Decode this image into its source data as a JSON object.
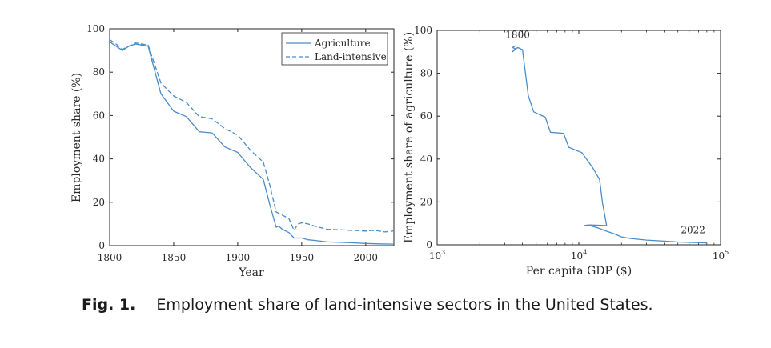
{
  "chart_data": [
    {
      "type": "line",
      "title": "",
      "xlabel": "Year",
      "ylabel": "Employment share (%)",
      "xlim": [
        1800,
        2022
      ],
      "ylim": [
        0,
        100
      ],
      "xticks": [
        1800,
        1850,
        1900,
        1950,
        2000
      ],
      "yticks": [
        0,
        20,
        40,
        60,
        80,
        100
      ],
      "grid": false,
      "legend_position": "top-right",
      "colors": {
        "line": "#4a8cc8",
        "axis": "#262626"
      },
      "series": [
        {
          "name": "Agriculture",
          "style": "solid",
          "points": [
            [
              1800,
              94
            ],
            [
              1805,
              92
            ],
            [
              1810,
              90
            ],
            [
              1815,
              92
            ],
            [
              1820,
              93
            ],
            [
              1825,
              92.5
            ],
            [
              1830,
              92
            ],
            [
              1840,
              70
            ],
            [
              1850,
              62
            ],
            [
              1860,
              59.5
            ],
            [
              1870,
              52.5
            ],
            [
              1880,
              52
            ],
            [
              1890,
              45.5
            ],
            [
              1900,
              43
            ],
            [
              1910,
              36
            ],
            [
              1920,
              30.5
            ],
            [
              1925,
              19
            ],
            [
              1930,
              8.5
            ],
            [
              1932,
              9
            ],
            [
              1935,
              7.5
            ],
            [
              1940,
              6
            ],
            [
              1944,
              3.5
            ],
            [
              1950,
              3.5
            ],
            [
              1955,
              2.7
            ],
            [
              1960,
              2.4
            ],
            [
              1970,
              1.7
            ],
            [
              1980,
              1.5
            ],
            [
              1990,
              1.3
            ],
            [
              2000,
              1
            ],
            [
              2010,
              0.8
            ],
            [
              2022,
              0.7
            ]
          ]
        },
        {
          "name": "Land-intensive",
          "style": "dashed",
          "points": [
            [
              1800,
              95
            ],
            [
              1805,
              93
            ],
            [
              1810,
              90.5
            ],
            [
              1815,
              92
            ],
            [
              1820,
              93.5
            ],
            [
              1825,
              93
            ],
            [
              1830,
              92.5
            ],
            [
              1840,
              75
            ],
            [
              1850,
              69
            ],
            [
              1860,
              66
            ],
            [
              1870,
              59.5
            ],
            [
              1880,
              58.5
            ],
            [
              1890,
              54
            ],
            [
              1900,
              51
            ],
            [
              1910,
              44
            ],
            [
              1920,
              38.5
            ],
            [
              1925,
              28
            ],
            [
              1930,
              15.5
            ],
            [
              1935,
              14
            ],
            [
              1940,
              12.5
            ],
            [
              1944,
              7
            ],
            [
              1947,
              10
            ],
            [
              1950,
              10.5
            ],
            [
              1955,
              10
            ],
            [
              1960,
              9
            ],
            [
              1970,
              7.5
            ],
            [
              1980,
              7.3
            ],
            [
              1990,
              7
            ],
            [
              2000,
              6.7
            ],
            [
              2005,
              7
            ],
            [
              2010,
              6.8
            ],
            [
              2015,
              6.3
            ],
            [
              2022,
              6.8
            ]
          ]
        }
      ]
    },
    {
      "type": "line",
      "title": "",
      "xlabel": "Per capita GDP ($)",
      "ylabel": "Employment share of agriculture (%)",
      "xscale": "log",
      "xlim": [
        1000,
        100000
      ],
      "ylim": [
        0,
        100
      ],
      "xtick_labels": [
        {
          "base": "10",
          "exp": "3",
          "value": 1000
        },
        {
          "base": "10",
          "exp": "4",
          "value": 10000
        },
        {
          "base": "10",
          "exp": "5",
          "value": 100000
        }
      ],
      "yticks": [
        0,
        20,
        40,
        60,
        80,
        100
      ],
      "grid": false,
      "colors": {
        "line": "#4a8cc8",
        "axis": "#262626"
      },
      "annotations": [
        {
          "text": "1800",
          "x": 3700,
          "y": 96.5
        },
        {
          "text": "2022",
          "x": 64000,
          "y": 5.5
        }
      ],
      "series": [
        {
          "style": "solid",
          "points": [
            [
              3600,
              93
            ],
            [
              3400,
              92
            ],
            [
              3550,
              91.5
            ],
            [
              3400,
              90
            ],
            [
              3700,
              92
            ],
            [
              4000,
              91
            ],
            [
              4400,
              69.5
            ],
            [
              4800,
              62
            ],
            [
              5800,
              59.5
            ],
            [
              6300,
              52.5
            ],
            [
              7800,
              52
            ],
            [
              8500,
              45.5
            ],
            [
              10500,
              43
            ],
            [
              12500,
              36
            ],
            [
              14000,
              30.5
            ],
            [
              14700,
              19.5
            ],
            [
              15700,
              9
            ],
            [
              12000,
              9.3
            ],
            [
              11000,
              9
            ],
            [
              11500,
              9.2
            ],
            [
              13500,
              8
            ],
            [
              15500,
              6.5
            ],
            [
              18000,
              5
            ],
            [
              20000,
              3.7
            ],
            [
              23000,
              3
            ],
            [
              30000,
              2.2
            ],
            [
              40000,
              1.7
            ],
            [
              50000,
              1.3
            ],
            [
              65000,
              1.1
            ],
            [
              80000,
              0.9
            ]
          ]
        }
      ]
    }
  ],
  "caption": {
    "label": "Fig. 1.",
    "text": "Employment share of land-intensive sectors in the United States."
  }
}
